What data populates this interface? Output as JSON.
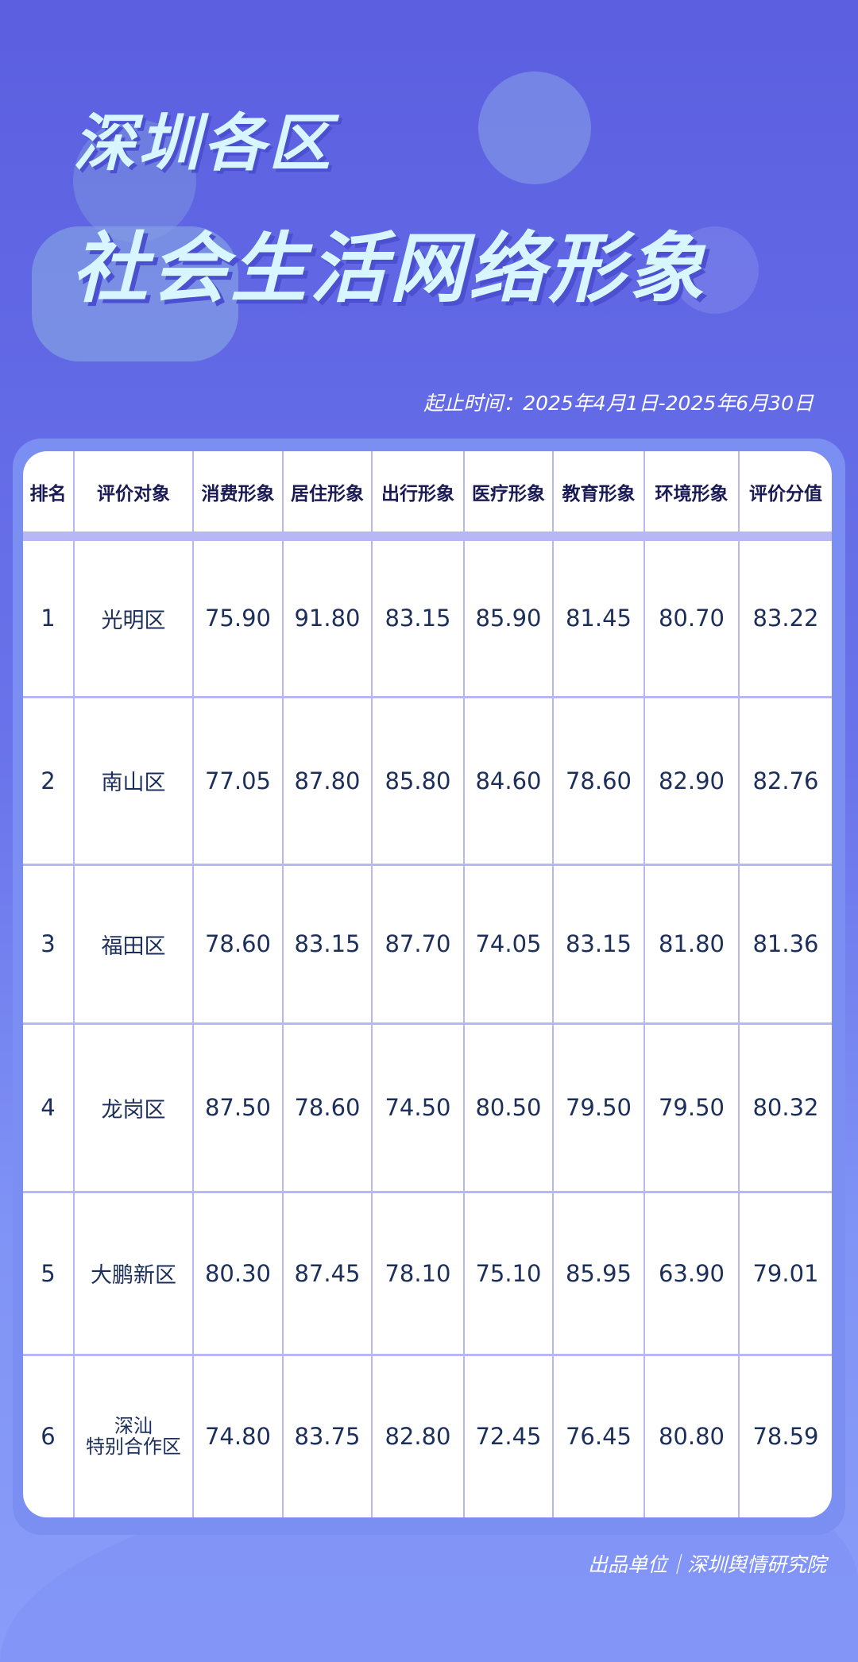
{
  "header": {
    "title_line1": "深圳各区",
    "title_line2": "社会生活网络形象",
    "date_range": "起止时间：2025年4月1日-2025年6月30日"
  },
  "table": {
    "columns": [
      "排名",
      "评价对象",
      "消费形象",
      "居住形象",
      "出行形象",
      "医疗形象",
      "教育形象",
      "环境形象",
      "评价分值"
    ],
    "rows": [
      [
        "1",
        "光明区",
        "75.90",
        "91.80",
        "83.15",
        "85.90",
        "81.45",
        "80.70",
        "83.22"
      ],
      [
        "2",
        "南山区",
        "77.05",
        "87.80",
        "85.80",
        "84.60",
        "78.60",
        "82.90",
        "82.76"
      ],
      [
        "3",
        "福田区",
        "78.60",
        "83.15",
        "87.70",
        "74.05",
        "83.15",
        "81.80",
        "81.36"
      ],
      [
        "4",
        "龙岗区",
        "87.50",
        "78.60",
        "74.50",
        "80.50",
        "79.50",
        "79.50",
        "80.32"
      ],
      [
        "5",
        "大鹏新区",
        "80.30",
        "87.45",
        "78.10",
        "75.10",
        "85.95",
        "63.90",
        "79.01"
      ],
      [
        "6",
        "深汕\n特别合作区",
        "74.80",
        "83.75",
        "82.80",
        "72.45",
        "76.45",
        "80.80",
        "78.59"
      ]
    ]
  },
  "footer": {
    "producer": "出品单位｜深圳舆情研究院"
  },
  "colors": {
    "background": "#6a73ea",
    "border": "#b7b7f5",
    "text": "#1c2f5b",
    "title": "#d7f6ff"
  }
}
